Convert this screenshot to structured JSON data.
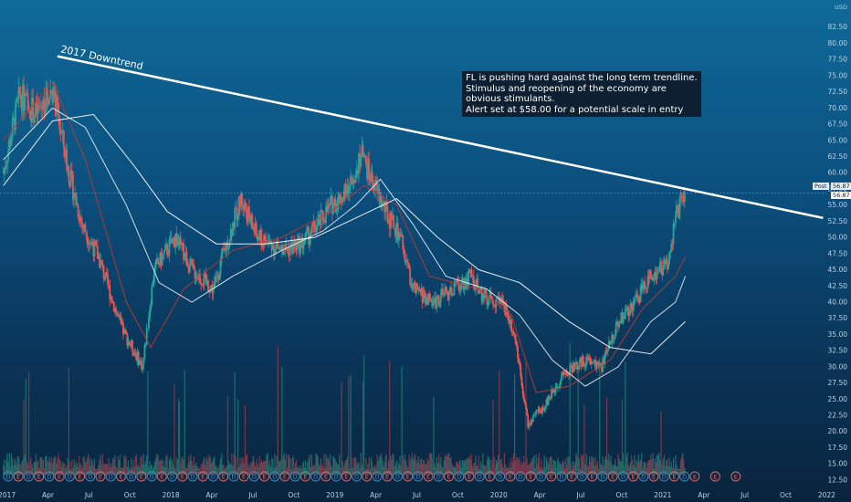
{
  "chart_data": {
    "type": "candlestick",
    "currency": "USD",
    "y_ticks": [
      "82.50",
      "80.00",
      "77.50",
      "75.00",
      "72.50",
      "70.00",
      "67.50",
      "65.00",
      "62.50",
      "60.00",
      "57.50",
      "55.00",
      "52.50",
      "50.00",
      "47.50",
      "45.00",
      "42.50",
      "40.00",
      "37.50",
      "35.00",
      "32.50",
      "30.00",
      "27.50",
      "25.00",
      "22.50",
      "20.00",
      "17.50",
      "15.00",
      "12.50"
    ],
    "ylim": [
      11.5,
      85
    ],
    "x_ticks": [
      "2017",
      "Apr",
      "Jul",
      "Oct",
      "2018",
      "Apr",
      "Jul",
      "Oct",
      "2019",
      "Apr",
      "Jul",
      "Oct",
      "2020",
      "Apr",
      "Jul",
      "Oct",
      "2021",
      "Apr",
      "Jul",
      "Oct",
      "2022"
    ],
    "price_points": [
      [
        2017.0,
        60
      ],
      [
        2017.1,
        72
      ],
      [
        2017.2,
        69
      ],
      [
        2017.3,
        73
      ],
      [
        2017.4,
        60
      ],
      [
        2017.48,
        52
      ],
      [
        2017.58,
        47
      ],
      [
        2017.72,
        36
      ],
      [
        2017.85,
        30
      ],
      [
        2017.92,
        45
      ],
      [
        2018.05,
        50
      ],
      [
        2018.15,
        45
      ],
      [
        2018.28,
        42
      ],
      [
        2018.35,
        48
      ],
      [
        2018.45,
        56
      ],
      [
        2018.55,
        50
      ],
      [
        2018.7,
        48
      ],
      [
        2018.82,
        49
      ],
      [
        2018.92,
        52
      ],
      [
        2019.0,
        55
      ],
      [
        2019.1,
        57
      ],
      [
        2019.18,
        63
      ],
      [
        2019.28,
        57
      ],
      [
        2019.35,
        53
      ],
      [
        2019.42,
        50
      ],
      [
        2019.5,
        42
      ],
      [
        2019.62,
        40
      ],
      [
        2019.75,
        42
      ],
      [
        2019.85,
        44
      ],
      [
        2019.92,
        41
      ],
      [
        2020.05,
        40
      ],
      [
        2020.12,
        35
      ],
      [
        2020.2,
        21
      ],
      [
        2020.3,
        24
      ],
      [
        2020.42,
        29
      ],
      [
        2020.55,
        31
      ],
      [
        2020.65,
        30
      ],
      [
        2020.75,
        37
      ],
      [
        2020.85,
        40
      ],
      [
        2020.95,
        44
      ],
      [
        2021.05,
        46
      ],
      [
        2021.1,
        53
      ],
      [
        2021.16,
        56.87
      ]
    ],
    "last_price": "56.87",
    "last_price_marker": "Post",
    "trendline": {
      "label": "2017 Downtrend",
      "start": [
        2017.33,
        78
      ],
      "end": [
        2022.0,
        53
      ]
    },
    "moving_averages": [
      {
        "color": "#c0392b",
        "values": [
          [
            2017.0,
            65
          ],
          [
            2017.3,
            74
          ],
          [
            2017.5,
            62
          ],
          [
            2017.75,
            40
          ],
          [
            2017.9,
            33
          ],
          [
            2018.1,
            42
          ],
          [
            2018.4,
            48
          ],
          [
            2018.7,
            50
          ],
          [
            2019.0,
            54
          ],
          [
            2019.2,
            58
          ],
          [
            2019.4,
            55
          ],
          [
            2019.6,
            44
          ],
          [
            2019.9,
            42
          ],
          [
            2020.1,
            38
          ],
          [
            2020.25,
            26
          ],
          [
            2020.45,
            27
          ],
          [
            2020.7,
            31
          ],
          [
            2020.9,
            39
          ],
          [
            2021.1,
            44
          ],
          [
            2021.16,
            47
          ]
        ]
      },
      {
        "color": "#e8ecf0",
        "values": [
          [
            2017.0,
            62
          ],
          [
            2017.3,
            70
          ],
          [
            2017.5,
            67
          ],
          [
            2017.75,
            55
          ],
          [
            2017.95,
            43
          ],
          [
            2018.15,
            40
          ],
          [
            2018.4,
            44
          ],
          [
            2018.7,
            48
          ],
          [
            2018.95,
            51
          ],
          [
            2019.15,
            55
          ],
          [
            2019.3,
            59
          ],
          [
            2019.5,
            52
          ],
          [
            2019.7,
            44
          ],
          [
            2019.95,
            42
          ],
          [
            2020.15,
            38
          ],
          [
            2020.35,
            31
          ],
          [
            2020.55,
            27
          ],
          [
            2020.75,
            30
          ],
          [
            2020.95,
            37
          ],
          [
            2021.1,
            40
          ],
          [
            2021.16,
            44
          ]
        ]
      },
      {
        "color": "#ffffff",
        "values": [
          [
            2017.0,
            58
          ],
          [
            2017.3,
            68
          ],
          [
            2017.55,
            69
          ],
          [
            2017.8,
            61
          ],
          [
            2018.0,
            54
          ],
          [
            2018.3,
            49
          ],
          [
            2018.6,
            49
          ],
          [
            2018.9,
            50
          ],
          [
            2019.15,
            53
          ],
          [
            2019.4,
            56
          ],
          [
            2019.65,
            50
          ],
          [
            2019.9,
            45
          ],
          [
            2020.15,
            43
          ],
          [
            2020.45,
            37
          ],
          [
            2020.7,
            33
          ],
          [
            2020.95,
            32
          ],
          [
            2021.16,
            37
          ]
        ]
      }
    ]
  },
  "annotation": {
    "lines": [
      "FL is pushing hard against the long term trendline.",
      "Stimulus and reopening of the economy are",
      "obvious stimulants.",
      "Alert set at $58.00 for a potential scale in entry"
    ]
  },
  "event_marker_letters": [
    "D",
    "E"
  ],
  "colors": {
    "up": "#26a69a",
    "down": "#ef5350",
    "volume_up": "#1f7a74",
    "volume_down": "#8a3a4a",
    "trendline": "#ffffff"
  }
}
